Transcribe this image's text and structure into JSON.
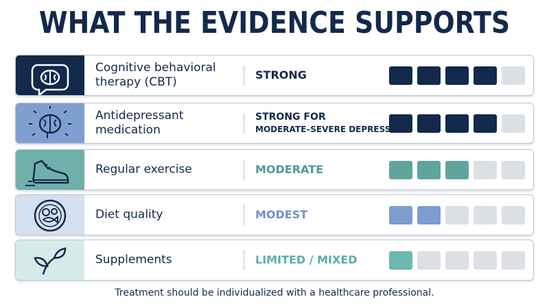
{
  "title": "WHAT THE EVIDENCE SUPPORTS",
  "scale_max": 5,
  "rows": [
    {
      "treatment": "Cognitive behavioral therapy (CBT)",
      "evidence": [
        "STRONG"
      ],
      "score": 4,
      "icon": "brain-chat",
      "icon_bg": "#13294b",
      "icon_fg": "#ffffff",
      "label_color": "#13294b",
      "block_color": "#13294b"
    },
    {
      "treatment": "Antidepressant medication",
      "evidence": [
        "STRONG FOR",
        "MODERATE–SEVERE DEPRESSION"
      ],
      "score": 4,
      "icon": "brain",
      "icon_bg": "#7f9fd0",
      "icon_fg": "#13294b",
      "label_color": "#13294b",
      "block_color": "#13294b"
    },
    {
      "treatment": "Regular exercise",
      "evidence": [
        "MODERATE"
      ],
      "score": 3,
      "icon": "shoe",
      "icon_bg": "#6fb0aa",
      "icon_fg": "#13294b",
      "label_color": "#4e9a94",
      "block_color": "#5fa59e"
    },
    {
      "treatment": "Diet quality",
      "evidence": [
        "MODEST"
      ],
      "score": 2,
      "icon": "plate",
      "icon_bg": "#d5e0f0",
      "icon_fg": "#13294b",
      "label_color": "#6f8fc7",
      "block_color": "#7b9dd0"
    },
    {
      "treatment": "Supplements",
      "evidence": [
        "LIMITED / MIXED"
      ],
      "score": 1,
      "icon": "leaf",
      "icon_bg": "#d6ebe9",
      "icon_fg": "#13294b",
      "label_color": "#5aaea6",
      "block_color": "#6bb8b0"
    }
  ],
  "footnote": "Treatment should be individualized with a healthcare professional."
}
